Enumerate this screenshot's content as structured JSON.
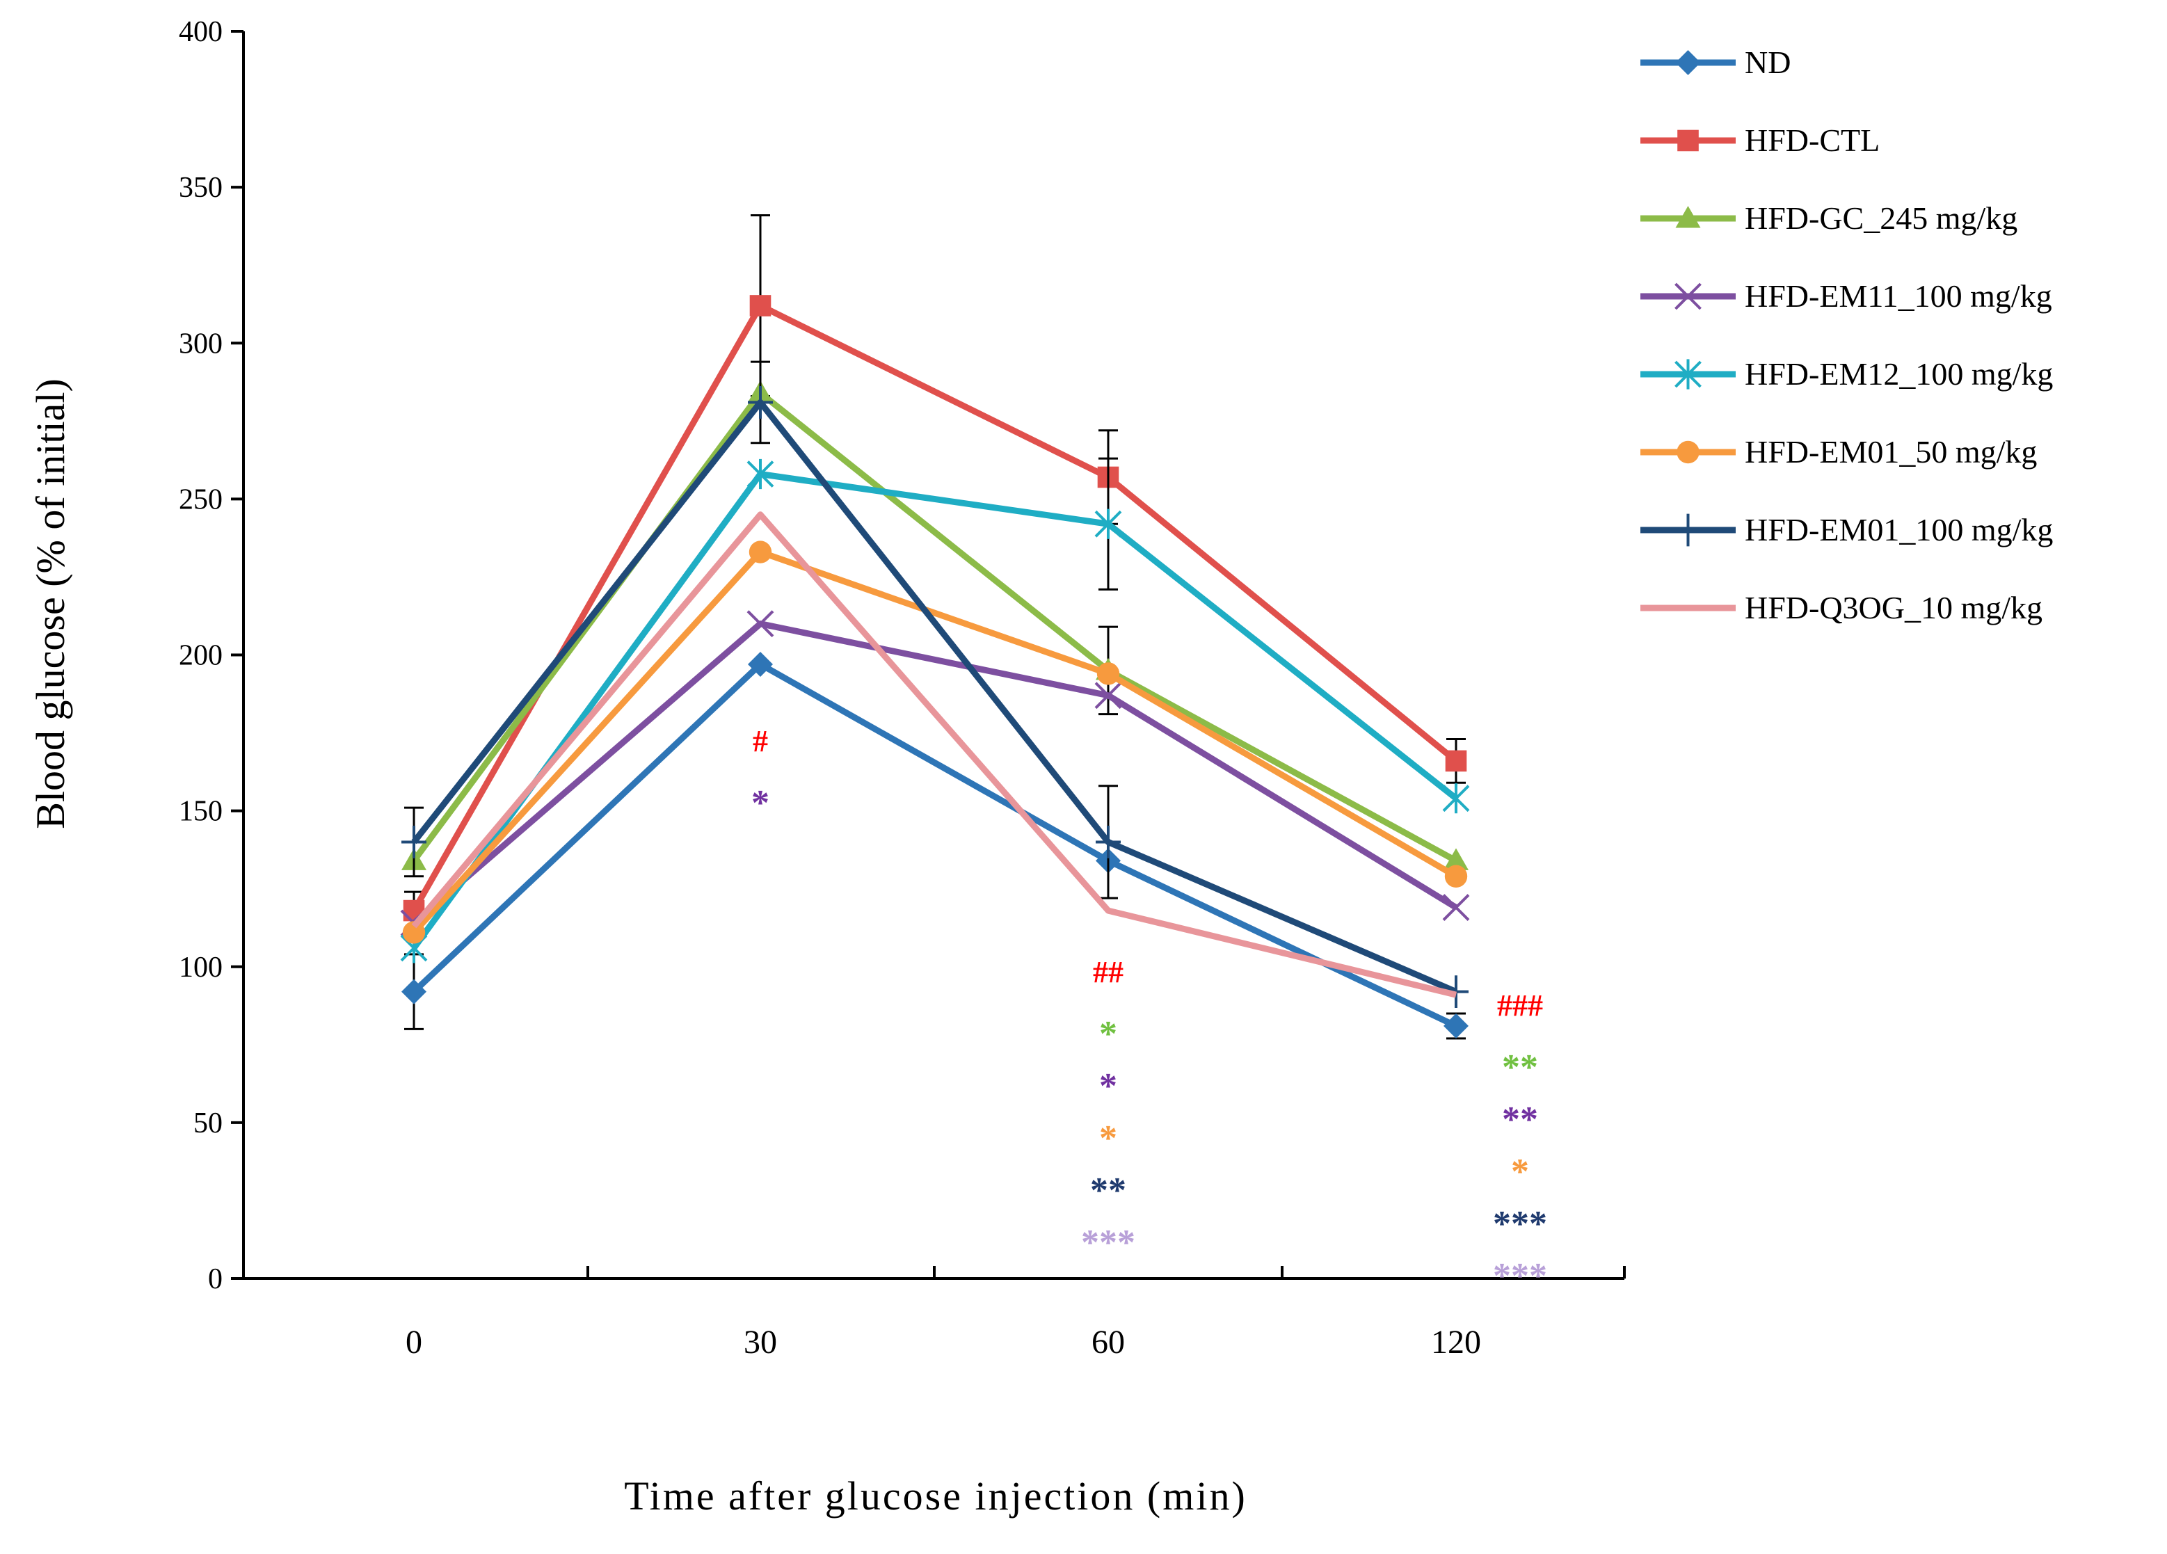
{
  "chart_data": {
    "type": "line",
    "title": "",
    "xlabel": "Time after glucose injection (min)",
    "ylabel": "Blood glucose  (% of initial)",
    "categories": [
      "0",
      "30",
      "60",
      "120"
    ],
    "ylim": [
      0,
      400
    ],
    "yticks": [
      0,
      50,
      100,
      150,
      200,
      250,
      300,
      350,
      400
    ],
    "grid": false,
    "legend_position": "right",
    "series": [
      {
        "name": "ND",
        "color": "#2E75B6",
        "marker": "diamond",
        "values": [
          92,
          197,
          134,
          81
        ],
        "errors": [
          12,
          0,
          0,
          4
        ]
      },
      {
        "name": "HFD-CTL",
        "color": "#E0504C",
        "marker": "square",
        "values": [
          118,
          312,
          257,
          166
        ],
        "errors": [
          6,
          29,
          15,
          7
        ]
      },
      {
        "name": "HFD-GC_245 mg/kg",
        "color": "#8CBB48",
        "marker": "triangle",
        "values": [
          134,
          284,
          195,
          134
        ],
        "errors": [
          0,
          0,
          14,
          0
        ]
      },
      {
        "name": "HFD-EM11_100 mg/kg",
        "color": "#7D4FA0",
        "marker": "x",
        "values": [
          114,
          210,
          187,
          119
        ],
        "errors": [
          0,
          0,
          0,
          0
        ]
      },
      {
        "name": "HFD-EM12_100 mg/kg",
        "color": "#1FADC4",
        "marker": "asterisk",
        "values": [
          106,
          258,
          242,
          154
        ],
        "errors": [
          0,
          0,
          21,
          0
        ]
      },
      {
        "name": "HFD-EM01_50 mg/kg",
        "color": "#F79A3E",
        "marker": "circle",
        "values": [
          111,
          233,
          194,
          129
        ],
        "errors": [
          0,
          0,
          0,
          0
        ]
      },
      {
        "name": "HFD-EM01_100 mg/kg",
        "color": "#1F4A78",
        "marker": "plus",
        "values": [
          140,
          281,
          140,
          92
        ],
        "errors": [
          11,
          13,
          18,
          0
        ]
      },
      {
        "name": "HFD-Q3OG_10 mg/kg",
        "color": "#E8959A",
        "marker": "none",
        "values": [
          113,
          245,
          118,
          91
        ],
        "errors": [
          0,
          0,
          0,
          0
        ]
      }
    ],
    "annotations": [
      {
        "x": "30",
        "text": "#",
        "color": "#FF0000"
      },
      {
        "x": "30",
        "text": "*",
        "color": "#7030A0"
      },
      {
        "x": "60",
        "text": "##",
        "color": "#FF0000"
      },
      {
        "x": "60",
        "text": "*",
        "color": "#70C040"
      },
      {
        "x": "60",
        "text": "*",
        "color": "#7030A0"
      },
      {
        "x": "60",
        "text": "*",
        "color": "#F79A3E"
      },
      {
        "x": "60",
        "text": "**",
        "color": "#1F3A6E"
      },
      {
        "x": "60",
        "text": "***",
        "color": "#B8A0D8"
      },
      {
        "x": "120",
        "text": "###",
        "color": "#FF0000"
      },
      {
        "x": "120",
        "text": "**",
        "color": "#70C040"
      },
      {
        "x": "120",
        "text": "**",
        "color": "#7030A0"
      },
      {
        "x": "120",
        "text": "*",
        "color": "#F79A3E"
      },
      {
        "x": "120",
        "text": "***",
        "color": "#1F3A6E"
      },
      {
        "x": "120",
        "text": "***",
        "color": "#B8A0D8"
      }
    ]
  }
}
